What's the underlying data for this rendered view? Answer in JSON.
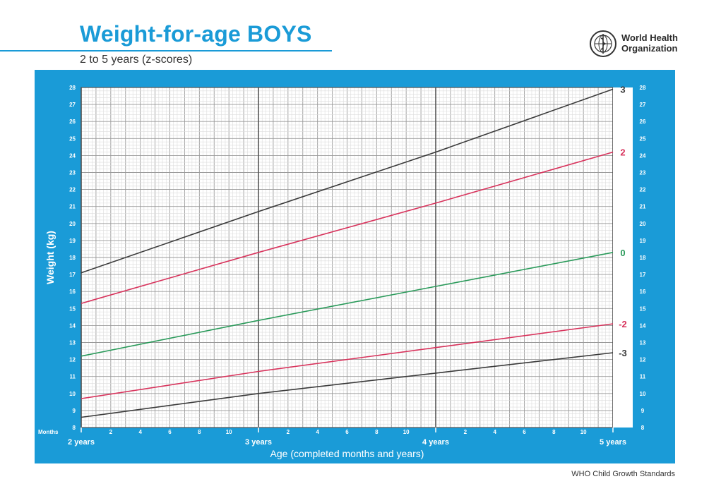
{
  "header": {
    "title": "Weight-for-age BOYS",
    "subtitle": "2 to 5 years (z-scores)",
    "org_line1": "World Health",
    "org_line2": "Organization"
  },
  "footer": {
    "text": "WHO Child Growth Standards"
  },
  "colors": {
    "accent": "#1a9bd7",
    "sd3": "#3a3a3a",
    "sd2": "#d8335c",
    "median": "#2a9a5a"
  },
  "chart_data": {
    "type": "line",
    "title": "Weight-for-age BOYS",
    "subtitle": "2 to 5 years (z-scores)",
    "xlabel": "Age (completed months and years)",
    "ylabel": "Weight (kg)",
    "months_label": "Months",
    "xlim": [
      24,
      60
    ],
    "ylim": [
      8,
      28
    ],
    "grid": true,
    "y_ticks": [
      8,
      9,
      10,
      11,
      12,
      13,
      14,
      15,
      16,
      17,
      18,
      19,
      20,
      21,
      22,
      23,
      24,
      25,
      26,
      27,
      28
    ],
    "month_ticks": [
      {
        "age": 26,
        "label": "2"
      },
      {
        "age": 28,
        "label": "4"
      },
      {
        "age": 30,
        "label": "6"
      },
      {
        "age": 32,
        "label": "8"
      },
      {
        "age": 34,
        "label": "10"
      },
      {
        "age": 38,
        "label": "2"
      },
      {
        "age": 40,
        "label": "4"
      },
      {
        "age": 42,
        "label": "6"
      },
      {
        "age": 44,
        "label": "8"
      },
      {
        "age": 46,
        "label": "10"
      },
      {
        "age": 50,
        "label": "2"
      },
      {
        "age": 52,
        "label": "4"
      },
      {
        "age": 54,
        "label": "6"
      },
      {
        "age": 56,
        "label": "8"
      },
      {
        "age": 58,
        "label": "10"
      }
    ],
    "year_ticks": [
      {
        "age": 24,
        "label": "2 years"
      },
      {
        "age": 36,
        "label": "3 years"
      },
      {
        "age": 48,
        "label": "4 years"
      },
      {
        "age": 60,
        "label": "5 years"
      }
    ],
    "x": [
      24,
      36,
      48,
      60
    ],
    "series": [
      {
        "name": "3",
        "color": "#3a3a3a",
        "values": [
          17.1,
          20.7,
          24.2,
          27.9
        ]
      },
      {
        "name": "2",
        "color": "#d8335c",
        "values": [
          15.3,
          18.3,
          21.2,
          24.2
        ]
      },
      {
        "name": "0",
        "color": "#2a9a5a",
        "values": [
          12.2,
          14.3,
          16.3,
          18.3
        ]
      },
      {
        "name": "-2",
        "color": "#d8335c",
        "values": [
          9.7,
          11.3,
          12.7,
          14.1
        ]
      },
      {
        "name": "-3",
        "color": "#3a3a3a",
        "values": [
          8.6,
          10.0,
          11.2,
          12.4
        ]
      }
    ]
  }
}
